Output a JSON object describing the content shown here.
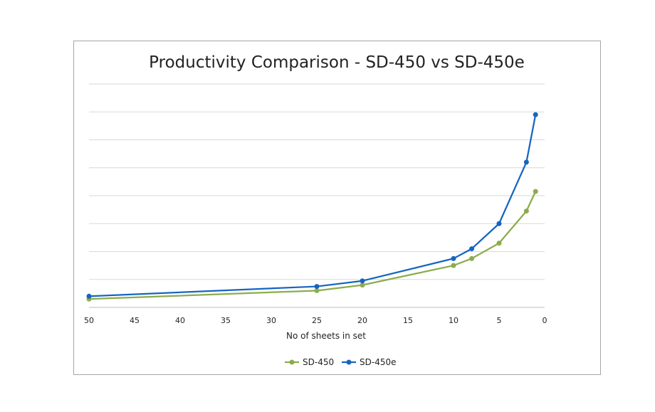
{
  "chart_data": {
    "type": "line",
    "title": "Productivity Comparison - SD-450 vs SD-450e",
    "xlabel": "No of sheets in set",
    "ylabel": "",
    "xlim": [
      50,
      0
    ],
    "x_reversed": true,
    "x_ticks": [
      50,
      45,
      40,
      35,
      30,
      25,
      20,
      15,
      10,
      5,
      0
    ],
    "ylim": [
      0,
      8
    ],
    "y_tick_labels_visible": false,
    "grid": "horizontal",
    "legend_position": "bottom",
    "colors": {
      "SD-450": "#8cac4c",
      "SD-450e": "#1565c0",
      "grid": "#d9d9d9"
    },
    "series": [
      {
        "name": "SD-450",
        "x": [
          50,
          25,
          20,
          10,
          8,
          5,
          2,
          1
        ],
        "y": [
          0.3,
          0.6,
          0.8,
          1.5,
          1.75,
          2.3,
          3.45,
          4.15
        ]
      },
      {
        "name": "SD-450e",
        "x": [
          50,
          25,
          20,
          10,
          8,
          5,
          2,
          1
        ],
        "y": [
          0.4,
          0.75,
          0.95,
          1.75,
          2.1,
          3.0,
          5.2,
          6.9
        ]
      }
    ]
  }
}
